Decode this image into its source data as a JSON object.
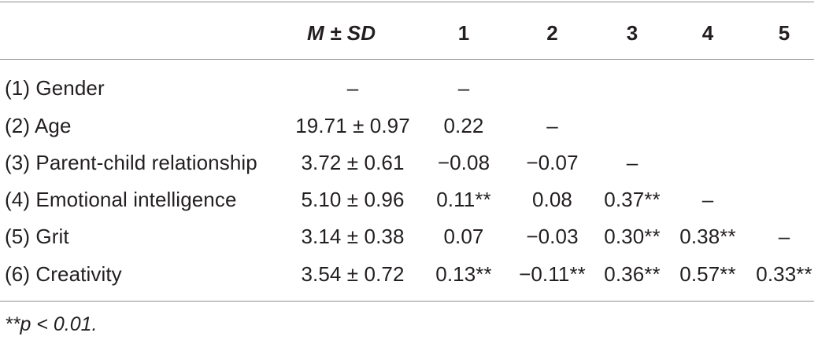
{
  "table": {
    "header": {
      "mean_label": "M ± SD",
      "cols": [
        "1",
        "2",
        "3",
        "4",
        "5"
      ]
    },
    "rows": [
      {
        "label": "(1) Gender",
        "mean": "–",
        "cells": [
          "–",
          "",
          "",
          "",
          ""
        ]
      },
      {
        "label": "(2) Age",
        "mean": "19.71 ± 0.97",
        "cells": [
          "0.22",
          "–",
          "",
          "",
          ""
        ]
      },
      {
        "label": "(3) Parent-child relationship",
        "mean": "3.72 ± 0.61",
        "cells": [
          "−0.08",
          "−0.07",
          "–",
          "",
          ""
        ]
      },
      {
        "label": "(4) Emotional intelligence",
        "mean": "5.10 ± 0.96",
        "cells": [
          "0.11**",
          "0.08",
          "0.37**",
          "–",
          ""
        ]
      },
      {
        "label": "(5) Grit",
        "mean": "3.14 ± 0.38",
        "cells": [
          "0.07",
          "−0.03",
          "0.30**",
          "0.38**",
          "–"
        ]
      },
      {
        "label": "(6) Creativity",
        "mean": "3.54 ± 0.72",
        "cells": [
          "0.13**",
          "−0.11**",
          "0.36**",
          "0.57**",
          "0.33**"
        ]
      }
    ],
    "footnote": "**p < 0.01."
  }
}
